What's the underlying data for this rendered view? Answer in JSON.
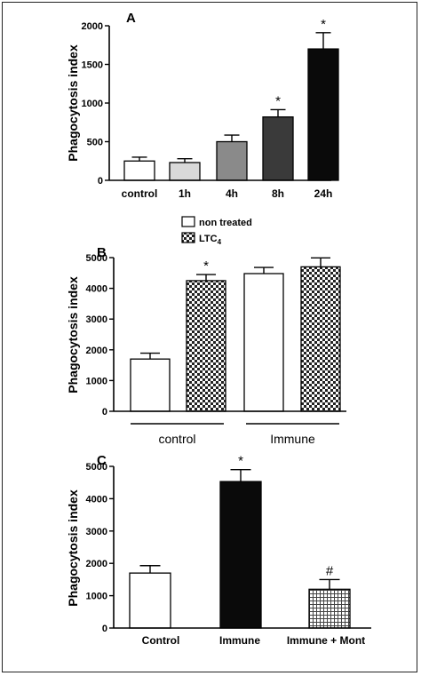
{
  "chart_data": [
    {
      "type": "bar",
      "panel_label": "A",
      "ylabel": "Phagocytosis index",
      "ylim": [
        0,
        2000
      ],
      "yticks": [
        "0",
        "500",
        "1000",
        "1500",
        "2000"
      ],
      "categories": [
        "control",
        "1h",
        "4h",
        "8h",
        "24h"
      ],
      "values": [
        250,
        230,
        500,
        820,
        1700
      ],
      "errors": [
        50,
        50,
        85,
        95,
        210
      ],
      "annotations": [
        "",
        "",
        "",
        "*",
        "*"
      ],
      "colors": [
        "#ffffff",
        "#d9d9d9",
        "#8a8a8a",
        "#3a3a3a",
        "#0a0a0a"
      ]
    },
    {
      "type": "bar",
      "panel_label": "B",
      "ylabel": "Phagocytosis index",
      "ylim": [
        0,
        5000
      ],
      "yticks": [
        "0",
        "1000",
        "2000",
        "3000",
        "4000",
        "5000"
      ],
      "groups": [
        "control",
        "Immune"
      ],
      "legend": {
        "position": "top-left",
        "entries": [
          {
            "label": "non treated",
            "pattern": "open"
          },
          {
            "label": "LTC",
            "sub": "4",
            "pattern": "checker"
          }
        ]
      },
      "series": [
        {
          "name": "non treated",
          "values": [
            1700,
            4480
          ],
          "errors": [
            190,
            200
          ],
          "annotations": [
            "",
            ""
          ]
        },
        {
          "name": "LTC4",
          "values": [
            4250,
            4700
          ],
          "errors": [
            200,
            290
          ],
          "annotations": [
            "*",
            ""
          ]
        }
      ]
    },
    {
      "type": "bar",
      "panel_label": "C",
      "ylabel": "Phagocytosis index",
      "ylim": [
        0,
        5000
      ],
      "yticks": [
        "0",
        "1000",
        "2000",
        "3000",
        "4000",
        "5000"
      ],
      "categories": [
        "Control",
        "Immune",
        "Immune + Mont"
      ],
      "values": [
        1700,
        4530,
        1200
      ],
      "errors": [
        230,
        370,
        300
      ],
      "annotations": [
        "",
        "*",
        "#"
      ],
      "patterns": [
        "open",
        "solid",
        "grid"
      ]
    }
  ]
}
